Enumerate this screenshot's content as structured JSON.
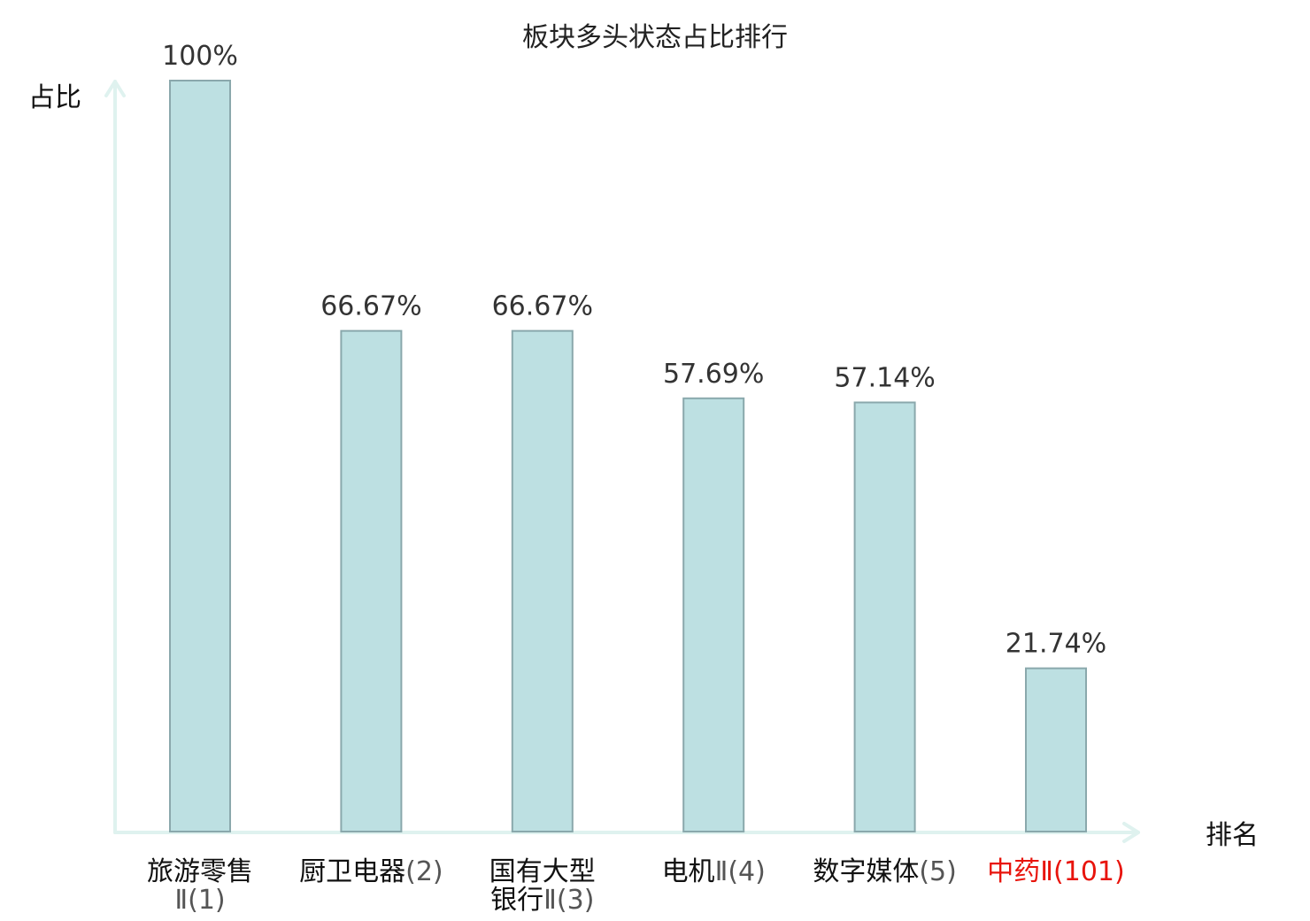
{
  "chart_data": {
    "type": "bar",
    "title": "板块多头状态占比排行",
    "ylabel": "占比",
    "xlabel": "排名",
    "ylim": [
      0,
      100
    ],
    "grid": false,
    "categories": [
      {
        "lines": [
          {
            "name": "旅游零售",
            "num": ""
          },
          {
            "name": "",
            "num": "Ⅱ(1)"
          }
        ],
        "highlight": false
      },
      {
        "lines": [
          {
            "name": "厨卫电器",
            "num": "(2)"
          }
        ],
        "highlight": false
      },
      {
        "lines": [
          {
            "name": "国有大型",
            "num": ""
          },
          {
            "name": "银行",
            "num": "Ⅱ(3)"
          }
        ],
        "highlight": false
      },
      {
        "lines": [
          {
            "name": "电机",
            "num": "Ⅱ(4)"
          }
        ],
        "highlight": false
      },
      {
        "lines": [
          {
            "name": "数字媒体",
            "num": "(5)"
          }
        ],
        "highlight": false
      },
      {
        "lines": [
          {
            "name": "中药",
            "num": "Ⅱ(101)"
          }
        ],
        "highlight": true
      }
    ],
    "values": [
      100,
      66.67,
      66.67,
      57.69,
      57.14,
      21.74
    ],
    "value_labels": [
      "100%",
      "66.67%",
      "66.67%",
      "57.69%",
      "57.14%",
      "21.74%"
    ],
    "colors": {
      "bar_fill": "#bde0e2",
      "bar_stroke": "#8aa8ac",
      "axis": "#dff2ef",
      "highlight": "#e8140c"
    }
  }
}
